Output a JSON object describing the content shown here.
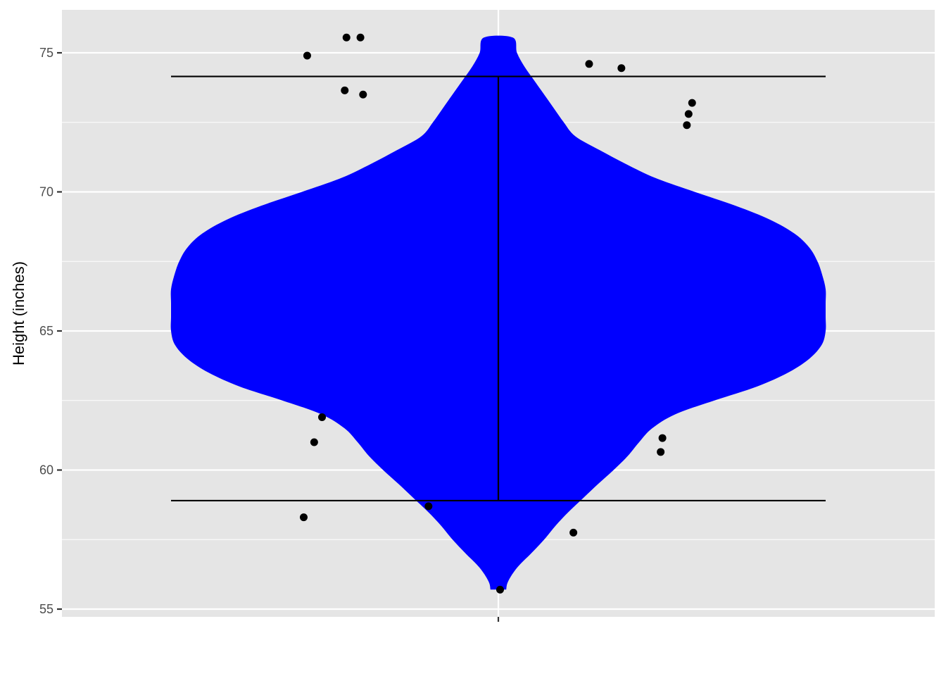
{
  "chart_data": {
    "type": "violin",
    "title": "",
    "xlabel": "",
    "ylabel": "Height (inches)",
    "ylim": [
      54.7,
      76.5
    ],
    "y_ticks": [
      55,
      60,
      65,
      70,
      75
    ],
    "y_tick_labels": [
      "55",
      "60",
      "65",
      "70",
      "75"
    ],
    "x_tick_labels": [
      ""
    ],
    "grid": true,
    "panel_background": "#e5e5e5",
    "violin_fill": "#0000ff",
    "point_color": "#000000",
    "errorbar": {
      "ymin": 58.9,
      "ymax": 74.15,
      "color": "#000000"
    },
    "violin_range": [
      55.7,
      75.55
    ],
    "density_profile": [
      [
        55.7,
        0.024
      ],
      [
        56.0,
        0.03
      ],
      [
        56.5,
        0.058
      ],
      [
        57.0,
        0.1
      ],
      [
        57.5,
        0.14
      ],
      [
        58.0,
        0.175
      ],
      [
        58.5,
        0.215
      ],
      [
        59.0,
        0.26
      ],
      [
        59.5,
        0.305
      ],
      [
        60.0,
        0.352
      ],
      [
        60.5,
        0.395
      ],
      [
        61.0,
        0.43
      ],
      [
        61.5,
        0.47
      ],
      [
        62.0,
        0.54
      ],
      [
        62.5,
        0.66
      ],
      [
        63.0,
        0.79
      ],
      [
        63.5,
        0.885
      ],
      [
        64.0,
        0.95
      ],
      [
        64.5,
        0.988
      ],
      [
        65.0,
        1.0
      ],
      [
        65.5,
        1.0
      ],
      [
        66.0,
        1.0
      ],
      [
        66.5,
        1.0
      ],
      [
        67.0,
        0.99
      ],
      [
        67.5,
        0.975
      ],
      [
        68.0,
        0.95
      ],
      [
        68.5,
        0.905
      ],
      [
        69.0,
        0.83
      ],
      [
        69.5,
        0.725
      ],
      [
        70.0,
        0.6
      ],
      [
        70.5,
        0.48
      ],
      [
        71.0,
        0.39
      ],
      [
        71.5,
        0.31
      ],
      [
        72.0,
        0.235
      ],
      [
        72.5,
        0.2
      ],
      [
        73.0,
        0.17
      ],
      [
        73.5,
        0.14
      ],
      [
        74.0,
        0.11
      ],
      [
        74.5,
        0.08
      ],
      [
        75.0,
        0.057
      ],
      [
        75.55,
        0.044
      ]
    ],
    "points": [
      {
        "x": -0.219,
        "y": 74.9
      },
      {
        "x": -0.174,
        "y": 75.55
      },
      {
        "x": -0.158,
        "y": 75.55
      },
      {
        "x": -0.176,
        "y": 73.65
      },
      {
        "x": -0.155,
        "y": 73.5
      },
      {
        "x": 0.104,
        "y": 74.6
      },
      {
        "x": 0.141,
        "y": 74.45
      },
      {
        "x": 0.222,
        "y": 73.2
      },
      {
        "x": 0.218,
        "y": 72.8
      },
      {
        "x": 0.216,
        "y": 72.4
      },
      {
        "x": -0.202,
        "y": 61.9
      },
      {
        "x": -0.211,
        "y": 61.0
      },
      {
        "x": 0.188,
        "y": 61.15
      },
      {
        "x": 0.186,
        "y": 60.65
      },
      {
        "x": -0.223,
        "y": 58.3
      },
      {
        "x": -0.08,
        "y": 58.7
      },
      {
        "x": 0.086,
        "y": 57.75
      },
      {
        "x": 0.002,
        "y": 55.7
      }
    ]
  }
}
